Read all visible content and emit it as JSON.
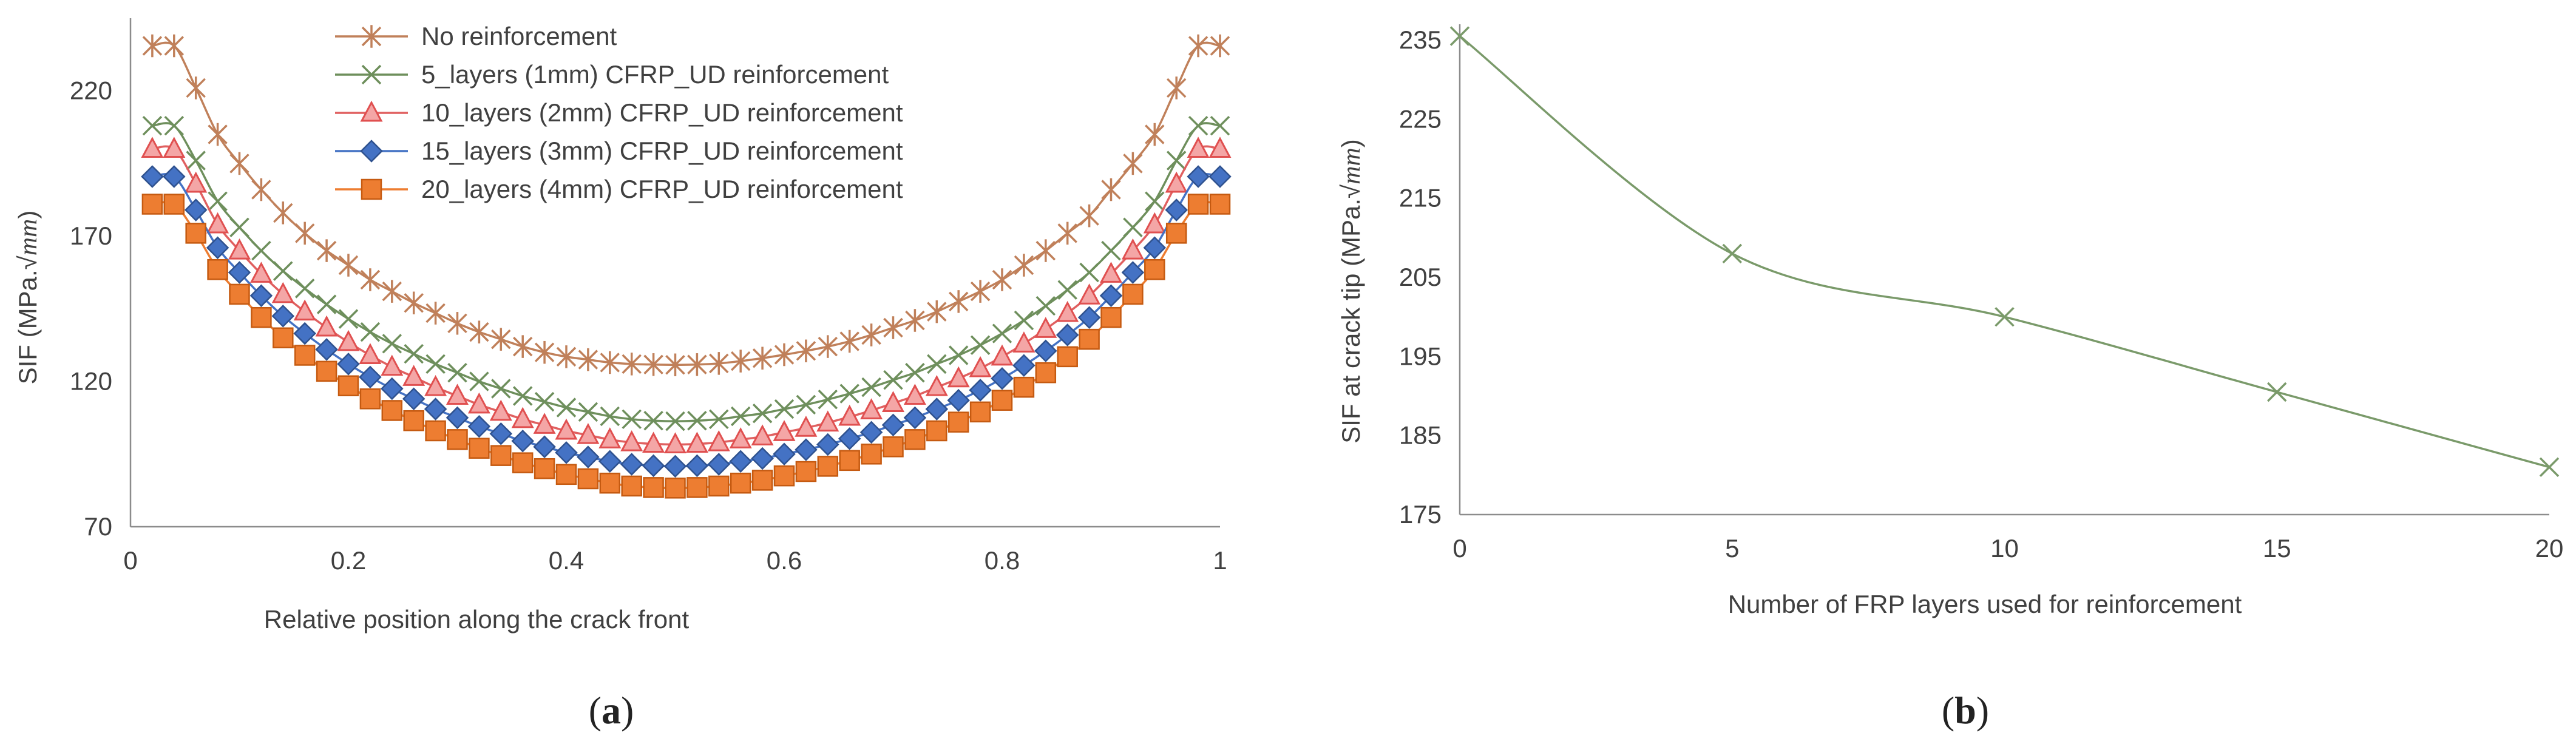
{
  "chart_data": [
    {
      "type": "line",
      "panel_label_open": "(",
      "panel_label_letter": "a",
      "panel_label_close": ")",
      "xlabel": "Relative position along the crack front",
      "ylabel": "SIF (MPa.√mm)",
      "ylabel_plain": "SIF (MPa.",
      "ylabel_root": "√",
      "ylabel_italic": "mm",
      "ylabel_close": ")",
      "xlim": [
        0,
        1
      ],
      "ylim": [
        70,
        245
      ],
      "xticks": [
        0,
        0.2,
        0.4,
        0.6,
        0.8,
        1
      ],
      "xtick_labels": [
        "0",
        "0.2",
        "0.4",
        "0.6",
        "0.8",
        "1"
      ],
      "yticks": [
        70,
        120,
        170,
        220
      ],
      "ytick_labels": [
        "70",
        "120",
        "170",
        "220"
      ],
      "legend_position": "top-center",
      "x": [
        0.02,
        0.04,
        0.06,
        0.08,
        0.1,
        0.12,
        0.14,
        0.16,
        0.18,
        0.2,
        0.22,
        0.24,
        0.26,
        0.28,
        0.3,
        0.32,
        0.34,
        0.36,
        0.38,
        0.4,
        0.42,
        0.44,
        0.46,
        0.48,
        0.5,
        0.52,
        0.54,
        0.56,
        0.58,
        0.6,
        0.62,
        0.64,
        0.66,
        0.68,
        0.7,
        0.72,
        0.74,
        0.76,
        0.78,
        0.8,
        0.82,
        0.84,
        0.86,
        0.88,
        0.9,
        0.92,
        0.94,
        0.96,
        0.98,
        1.0
      ],
      "series": [
        {
          "name": "No reinforcement",
          "marker": "star",
          "color": "#C0805A",
          "values": [
            235.5,
            235.5,
            221.0,
            205.0,
            195.0,
            186.0,
            178.0,
            171.0,
            165.0,
            160.0,
            155.0,
            151.0,
            147.0,
            143.5,
            140.0,
            137.0,
            134.5,
            132.0,
            130.0,
            128.5,
            127.5,
            126.5,
            126.0,
            125.8,
            125.7,
            125.8,
            126.2,
            127.0,
            128.0,
            129.2,
            130.5,
            132.0,
            133.8,
            136.0,
            138.5,
            141.0,
            144.0,
            147.5,
            151.0,
            155.0,
            160.0,
            165.0,
            171.0,
            177.0,
            186.0,
            195.0,
            205.0,
            221.0,
            235.5,
            235.5
          ]
        },
        {
          "name": "5_layers (1mm) CFRP_UD reinforcement",
          "marker": "x",
          "color": "#6E8F5C",
          "values": [
            208.0,
            208.0,
            196.0,
            182.0,
            173.0,
            165.0,
            158.0,
            152.0,
            146.5,
            141.5,
            137.0,
            133.0,
            129.5,
            126.0,
            123.0,
            120.0,
            117.5,
            115.0,
            113.0,
            111.0,
            109.5,
            108.0,
            107.0,
            106.5,
            106.3,
            106.5,
            107.0,
            108.0,
            109.0,
            110.5,
            112.0,
            113.8,
            115.8,
            118.0,
            120.5,
            123.0,
            126.0,
            129.0,
            132.5,
            136.5,
            141.0,
            146.0,
            151.5,
            157.5,
            165.0,
            173.0,
            182.0,
            196.0,
            208.0,
            208.0
          ]
        },
        {
          "name": "10_layers (2mm) CFRP_UD reinforcement",
          "marker": "triangle",
          "color": "#E06060",
          "values": [
            200.0,
            200.0,
            188.0,
            174.0,
            165.0,
            157.0,
            150.0,
            144.0,
            138.5,
            133.5,
            129.0,
            125.0,
            121.5,
            118.0,
            115.0,
            112.0,
            109.5,
            107.0,
            105.0,
            103.0,
            101.5,
            100.0,
            99.0,
            98.5,
            98.3,
            98.5,
            99.0,
            100.0,
            101.0,
            102.5,
            104.0,
            105.8,
            107.8,
            110.0,
            112.5,
            115.0,
            118.0,
            121.0,
            124.5,
            128.5,
            133.0,
            138.0,
            143.5,
            149.5,
            157.0,
            165.0,
            174.0,
            188.0,
            200.0,
            200.0
          ]
        },
        {
          "name": "15_layers (3mm) CFRP_UD reinforcement",
          "marker": "diamond",
          "color": "#4472C4",
          "values": [
            190.5,
            190.5,
            179.0,
            166.0,
            157.5,
            149.5,
            142.5,
            136.5,
            131.0,
            126.0,
            121.5,
            117.5,
            114.0,
            110.5,
            107.5,
            104.5,
            102.0,
            99.5,
            97.5,
            95.5,
            94.0,
            92.5,
            91.5,
            91.0,
            90.8,
            91.0,
            91.5,
            92.5,
            93.5,
            95.0,
            96.5,
            98.3,
            100.3,
            102.5,
            105.0,
            107.5,
            110.5,
            113.5,
            117.0,
            121.0,
            125.5,
            130.5,
            136.0,
            142.0,
            149.5,
            157.5,
            166.0,
            179.0,
            190.5,
            190.5
          ]
        },
        {
          "name": "20_layers (4mm) CFRP_UD reinforcement",
          "marker": "square",
          "color": "#ED7D31",
          "values": [
            181.0,
            181.0,
            171.0,
            158.5,
            150.0,
            142.0,
            135.0,
            129.0,
            123.5,
            118.5,
            114.0,
            110.0,
            106.5,
            103.0,
            100.0,
            97.0,
            94.5,
            92.0,
            90.0,
            88.0,
            86.5,
            85.0,
            84.0,
            83.5,
            83.3,
            83.5,
            84.0,
            85.0,
            86.0,
            87.5,
            89.0,
            90.8,
            92.8,
            95.0,
            97.5,
            100.0,
            103.0,
            106.0,
            109.5,
            113.5,
            118.0,
            123.0,
            128.5,
            134.5,
            142.0,
            150.0,
            158.5,
            171.0,
            181.0,
            181.0
          ]
        }
      ]
    },
    {
      "type": "line",
      "panel_label_open": "(",
      "panel_label_letter": "b",
      "panel_label_close": ")",
      "xlabel": "Number of FRP layers used for reinforcement",
      "ylabel": "SIF at crack tip (MPa.√mm)",
      "ylabel_plain": "SIF at crack tip (MPa.",
      "ylabel_root": "√",
      "ylabel_italic": "mm",
      "ylabel_close": ")",
      "xlim": [
        0,
        20
      ],
      "ylim": [
        175,
        237
      ],
      "xticks": [
        0,
        5,
        10,
        15,
        20
      ],
      "xtick_labels": [
        "0",
        "5",
        "10",
        "15",
        "20"
      ],
      "yticks": [
        175,
        185,
        195,
        205,
        215,
        225,
        235
      ],
      "ytick_labels": [
        "175",
        "185",
        "195",
        205,
        "215",
        "225",
        "235"
      ],
      "series": [
        {
          "name": "SIF at crack tip",
          "marker": "x",
          "color": "#7A9A6A",
          "x": [
            0,
            5,
            10,
            15,
            20
          ],
          "values": [
            235.5,
            208.0,
            200.0,
            190.5,
            181.0
          ]
        }
      ]
    }
  ]
}
